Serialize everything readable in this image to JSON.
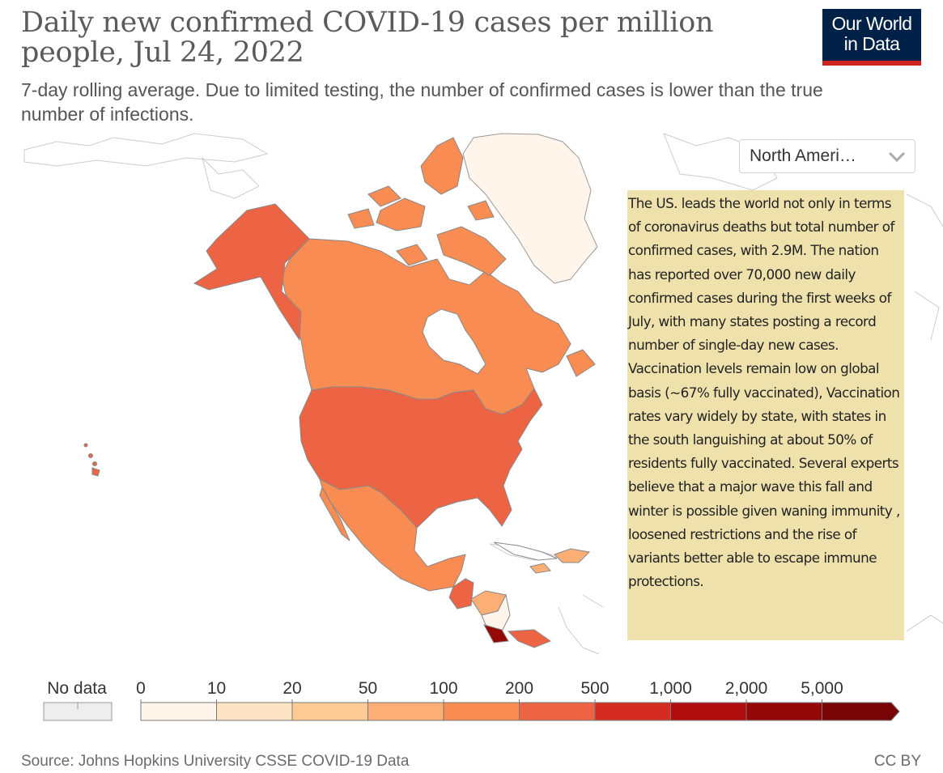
{
  "header": {
    "title": "Daily new confirmed COVID-19 cases per million people, Jul 24, 2022",
    "subtitle": "7-day rolling average. Due to limited testing, the number of confirmed cases is lower than the true number of infections."
  },
  "logo": {
    "line1": "Our World",
    "line2": "in Data"
  },
  "region_select": {
    "selected": "North Ameri…"
  },
  "annotation": {
    "text": "The US. leads the world not only in terms of coronavirus deaths but total number of confirmed cases, with 2.9M. The nation has reported over 70,000 new daily confirmed cases during the first weeks of July, with many states posting a record number of single-day new cases.\nVaccination levels remain low on global basis (~67%  fully vaccinated), Vaccination rates vary widely by state, with states in the south languishing at about 50% of residents fully vaccinated. Several experts believe that a major wave this fall and winter is possible given waning immunity , loosened restrictions and the rise of variants better able to escape immune protections."
  },
  "legend": {
    "no_data_label": "No data",
    "no_data_color": "#eeeeee",
    "bins": [
      {
        "label": "0",
        "color": "#fff5eb"
      },
      {
        "label": "10",
        "color": "#fee4c5"
      },
      {
        "label": "20",
        "color": "#fdcb95"
      },
      {
        "label": "50",
        "color": "#fcae74"
      },
      {
        "label": "100",
        "color": "#f98c52"
      },
      {
        "label": "200",
        "color": "#ed6444"
      },
      {
        "label": "500",
        "color": "#d52c22"
      },
      {
        "label": "1,000",
        "color": "#b00d0d"
      },
      {
        "label": "2,000",
        "color": "#940808"
      },
      {
        "label": "5,000",
        "color": "#780505"
      }
    ]
  },
  "colors": {
    "usa": "#ed6444",
    "canada": "#f98c52",
    "mexico": "#f98c52",
    "greenland": "#fff5eb",
    "central_america_light": "#fcae74",
    "costa_rica": "#940808",
    "nicaragua": "#fff5eb"
  },
  "footer": {
    "source": "Source: Johns Hopkins University CSSE COVID-19 Data",
    "license": "CC BY"
  }
}
